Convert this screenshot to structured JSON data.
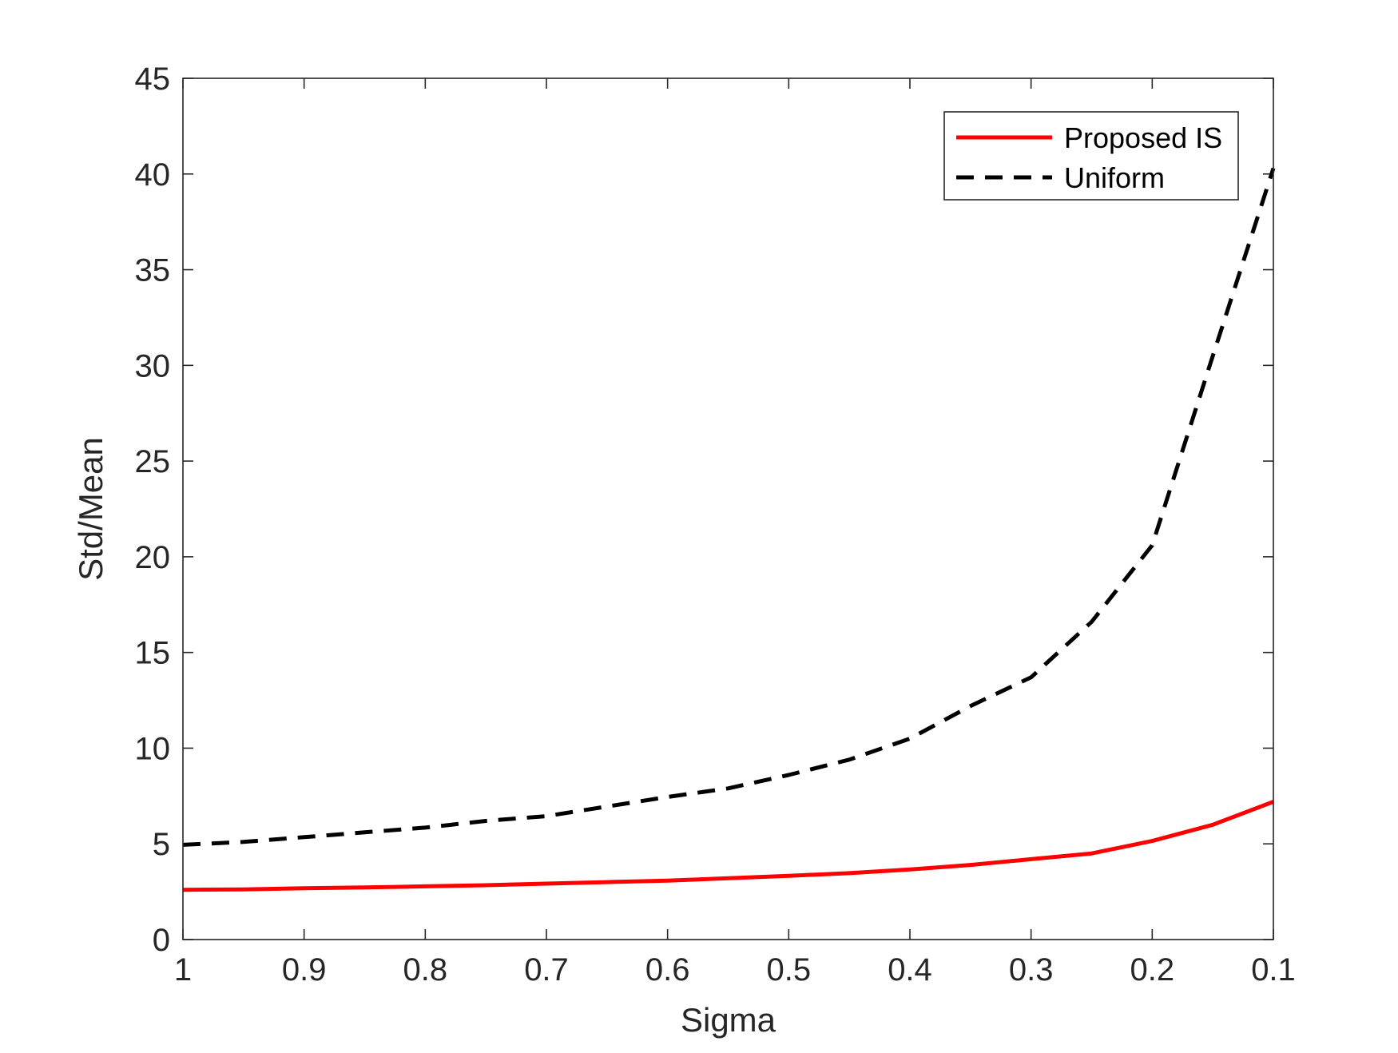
{
  "chart_data": {
    "type": "line",
    "title": "",
    "xlabel": "Sigma",
    "ylabel": "Std/Mean",
    "x_reversed": true,
    "xlim": [
      0.1,
      1
    ],
    "ylim": [
      0,
      45
    ],
    "xticks": [
      1,
      0.9,
      0.8,
      0.7,
      0.6,
      0.5,
      0.4,
      0.3,
      0.2,
      0.1
    ],
    "xtick_labels": [
      "1",
      "0.9",
      "0.8",
      "0.7",
      "0.6",
      "0.5",
      "0.4",
      "0.3",
      "0.2",
      "0.1"
    ],
    "yticks": [
      0,
      5,
      10,
      15,
      20,
      25,
      30,
      35,
      40,
      45
    ],
    "ytick_labels": [
      "0",
      "5",
      "10",
      "15",
      "20",
      "25",
      "30",
      "35",
      "40",
      "45"
    ],
    "grid": false,
    "legend_position": "top-right",
    "x": [
      1,
      0.95,
      0.9,
      0.85,
      0.8,
      0.75,
      0.7,
      0.65,
      0.6,
      0.55,
      0.5,
      0.45,
      0.4,
      0.35,
      0.3,
      0.25,
      0.2,
      0.15,
      0.1
    ],
    "series": [
      {
        "name": "Proposed IS",
        "color": "#ff0000",
        "style": "solid",
        "values": [
          2.6,
          2.62,
          2.68,
          2.72,
          2.78,
          2.84,
          2.92,
          3.0,
          3.08,
          3.2,
          3.33,
          3.47,
          3.66,
          3.9,
          4.2,
          4.5,
          5.15,
          6.0,
          7.2
        ]
      },
      {
        "name": "Uniform",
        "color": "#000000",
        "style": "dashed",
        "values": [
          4.95,
          5.1,
          5.35,
          5.6,
          5.85,
          6.2,
          6.45,
          6.95,
          7.45,
          7.9,
          8.6,
          9.4,
          10.5,
          12.2,
          13.7,
          16.6,
          20.6,
          30.5,
          40.3
        ]
      }
    ]
  }
}
